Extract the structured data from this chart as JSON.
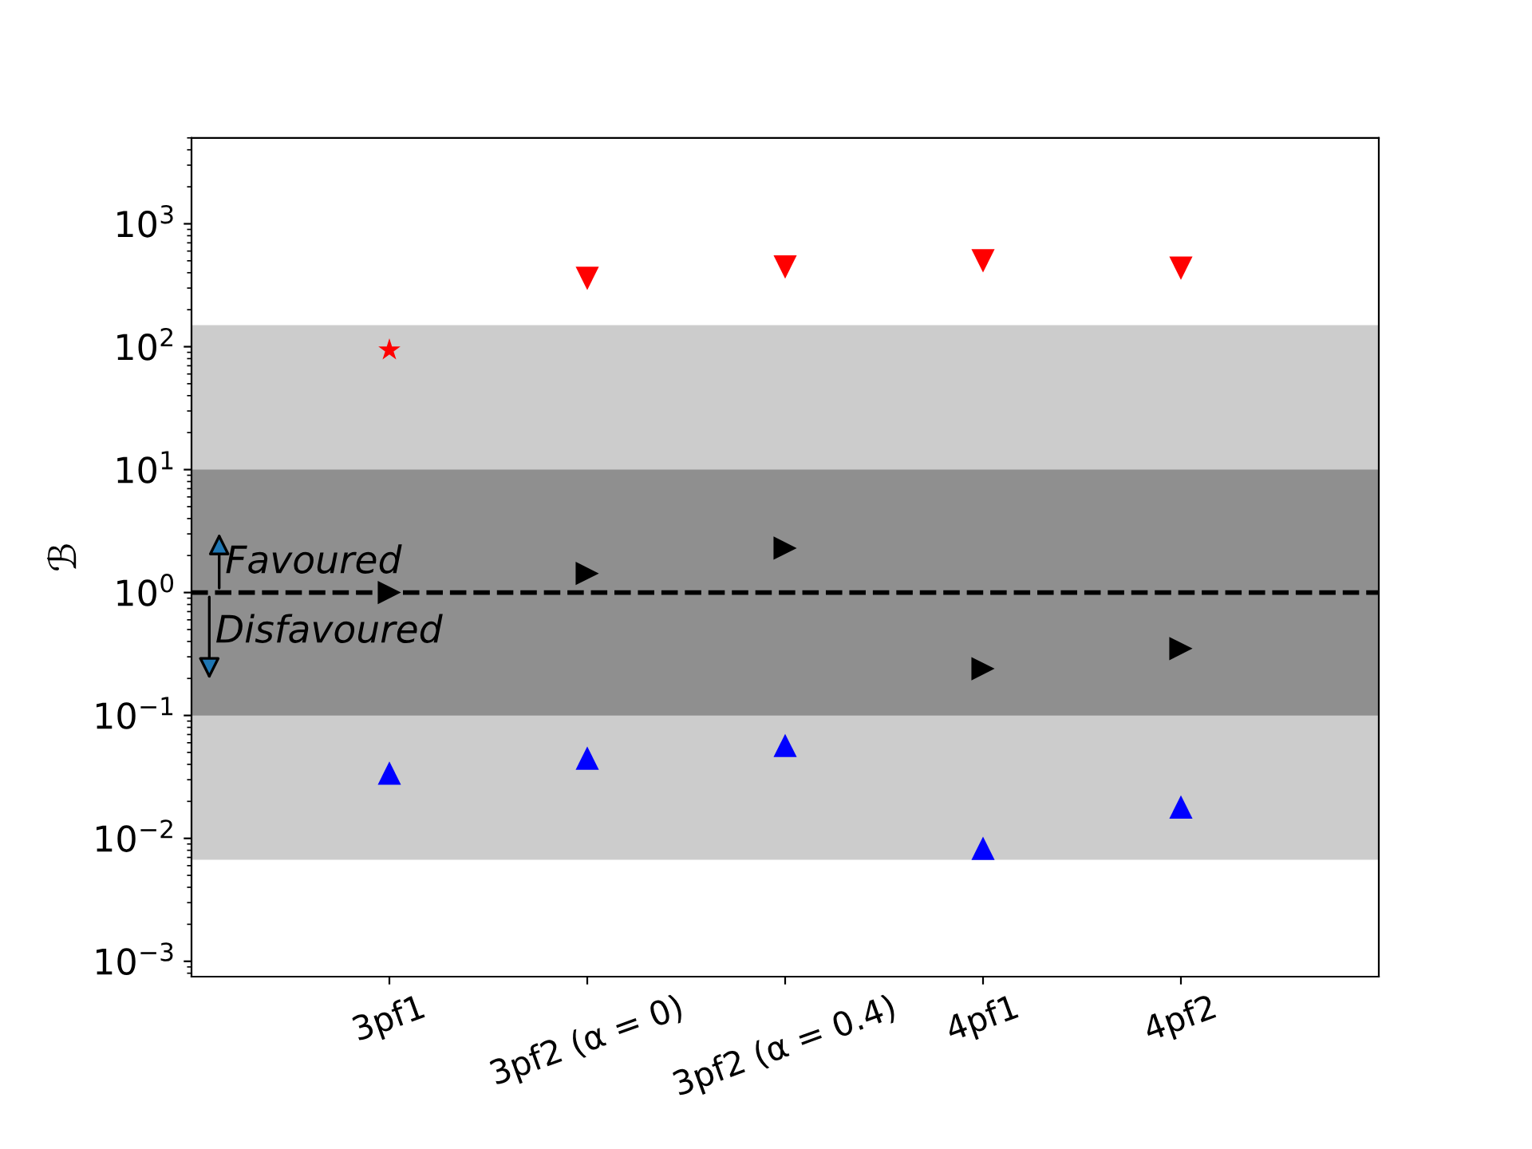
{
  "chart_data": {
    "type": "scatter",
    "ylabel": "ℬ",
    "categories": [
      "3pf1",
      "3pf2 (α = 0)",
      "3pf2 (α = 0.4)",
      "4pf1",
      "4pf2"
    ],
    "series": [
      {
        "color": "#ff0000",
        "marker": "triangle-down",
        "values": [
          null,
          360,
          445,
          500,
          435
        ]
      },
      {
        "color": "#000000",
        "marker": "triangle-right",
        "values": [
          1.0,
          1.43,
          2.3,
          0.24,
          0.35
        ]
      },
      {
        "color": "#0000ff",
        "marker": "triangle",
        "values": [
          0.034,
          0.045,
          0.057,
          0.0083,
          0.018
        ]
      },
      {
        "color": "#ff0000",
        "marker": "star",
        "values": [
          94,
          null,
          null,
          null,
          null
        ]
      }
    ],
    "log": "y",
    "ylim": [
      0.00075,
      5000
    ],
    "yticks": [
      {
        "value": 0.001,
        "label": "10$^{−3}$"
      },
      {
        "value": 0.01,
        "label": "10$^{−2}$"
      },
      {
        "value": 0.1,
        "label": "10$^{−1}$"
      },
      {
        "value": 1,
        "label": "10$^{0}$"
      },
      {
        "value": 10,
        "label": "10$^{1}$"
      },
      {
        "value": 100,
        "label": "10$^{2}$"
      },
      {
        "value": 1000,
        "label": "10$^{3}$"
      }
    ],
    "ref_lines": [
      {
        "axis": "y",
        "value": 1,
        "color": "#000000",
        "line_style": "dashed"
      }
    ],
    "bands": [
      {
        "axis": "y",
        "from": 0.0067,
        "to": 150,
        "color": "#cccccc"
      },
      {
        "axis": "y",
        "from": 0.1,
        "to": 10,
        "color": "#8f8f8f"
      }
    ],
    "annotations": [
      {
        "text": "Favoured",
        "y": 1
      },
      {
        "text": "Disfavoured",
        "y": 1
      }
    ],
    "grid": false,
    "legend": false
  }
}
